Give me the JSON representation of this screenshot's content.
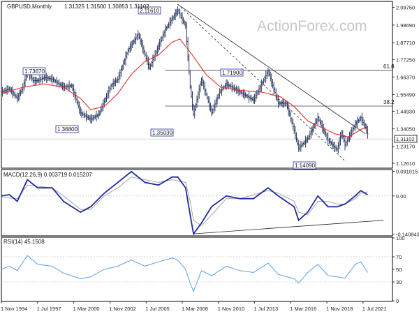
{
  "chart_data": {
    "type": "line",
    "price": {
      "title": "GBPUSD,Monthly",
      "ohlc": "1.31325 1.31500 1.30853 1.31102",
      "y_ticks": [
        {
          "label": "2.09750",
          "value": 2.0975
        },
        {
          "label": "1.98690",
          "value": 1.9869
        },
        {
          "label": "1.87710",
          "value": 1.8771
        },
        {
          "label": "1.77250",
          "value": 1.7725
        },
        {
          "label": "1.66370",
          "value": 1.6637
        },
        {
          "label": "1.55490",
          "value": 1.5549
        },
        {
          "label": "1.44930",
          "value": 1.4493
        },
        {
          "label": "1.34050",
          "value": 1.3405
        },
        {
          "label": "1.23170",
          "value": 1.2317
        },
        {
          "label": "1.12610",
          "value": 1.1261
        }
      ],
      "ylim": [
        1.1,
        2.13
      ],
      "current_price": {
        "label": "1.31102",
        "value": 1.31102
      },
      "callouts": [
        {
          "label": "2.11610",
          "value": 2.1161,
          "date": "Nov 2007"
        },
        {
          "label": "1.73670",
          "value": 1.7367,
          "date": "Jan 1996"
        },
        {
          "label": "1.36800",
          "value": 1.368,
          "date": "Jun 2001"
        },
        {
          "label": "1.71900",
          "value": 1.719,
          "date": "Jul 2014"
        },
        {
          "label": "1.35030",
          "value": 1.3503,
          "date": "Jan 2009"
        },
        {
          "label": "1.14090",
          "value": 1.1409,
          "date": "Mar 2020"
        }
      ],
      "fib_levels": [
        {
          "label": "61.8",
          "value": 1.738
        },
        {
          "label": "38.2",
          "value": 1.508
        }
      ],
      "close_series": [
        [
          "1994-11",
          1.57
        ],
        [
          "1995-06",
          1.59
        ],
        [
          "1996-01",
          1.53
        ],
        [
          "1996-06",
          1.6
        ],
        [
          "1996-10",
          1.7
        ],
        [
          "1997-03",
          1.64
        ],
        [
          "1997-07",
          1.64
        ],
        [
          "1998-01",
          1.66
        ],
        [
          "1998-08",
          1.65
        ],
        [
          "1999-06",
          1.6
        ],
        [
          "2000-01",
          1.61
        ],
        [
          "2000-09",
          1.44
        ],
        [
          "2001-06",
          1.4
        ],
        [
          "2002-01",
          1.43
        ],
        [
          "2002-12",
          1.61
        ],
        [
          "2003-06",
          1.65
        ],
        [
          "2004-03",
          1.83
        ],
        [
          "2004-12",
          1.93
        ],
        [
          "2005-06",
          1.8
        ],
        [
          "2005-10",
          1.72
        ],
        [
          "2006-12",
          1.96
        ],
        [
          "2007-11",
          2.08
        ],
        [
          "2008-06",
          1.98
        ],
        [
          "2008-10",
          1.6
        ],
        [
          "2009-01",
          1.43
        ],
        [
          "2009-08",
          1.65
        ],
        [
          "2010-05",
          1.44
        ],
        [
          "2010-12",
          1.57
        ],
        [
          "2011-06",
          1.62
        ],
        [
          "2012-06",
          1.57
        ],
        [
          "2013-06",
          1.52
        ],
        [
          "2014-07",
          1.7
        ],
        [
          "2015-04",
          1.5
        ],
        [
          "2015-11",
          1.5
        ],
        [
          "2016-06",
          1.33
        ],
        [
          "2016-10",
          1.22
        ],
        [
          "2017-06",
          1.28
        ],
        [
          "2018-03",
          1.41
        ],
        [
          "2018-12",
          1.27
        ],
        [
          "2019-08",
          1.21
        ],
        [
          "2019-12",
          1.32
        ],
        [
          "2020-03",
          1.24
        ],
        [
          "2020-12",
          1.37
        ],
        [
          "2021-05",
          1.41
        ],
        [
          "2021-09",
          1.35
        ],
        [
          "2021-11",
          1.31
        ]
      ],
      "ma_series": [
        [
          "1994-11",
          1.56
        ],
        [
          "1996-06",
          1.6
        ],
        [
          "1998-01",
          1.62
        ],
        [
          "1999-06",
          1.6
        ],
        [
          "2000-09",
          1.53
        ],
        [
          "2001-06",
          1.46
        ],
        [
          "2002-06",
          1.48
        ],
        [
          "2003-06",
          1.56
        ],
        [
          "2004-06",
          1.68
        ],
        [
          "2005-06",
          1.76
        ],
        [
          "2006-06",
          1.8
        ],
        [
          "2007-06",
          1.88
        ],
        [
          "2008-01",
          1.9
        ],
        [
          "2008-12",
          1.8
        ],
        [
          "2009-12",
          1.68
        ],
        [
          "2011-01",
          1.6
        ],
        [
          "2012-06",
          1.58
        ],
        [
          "2014-01",
          1.57
        ],
        [
          "2015-06",
          1.54
        ],
        [
          "2016-06",
          1.48
        ],
        [
          "2017-06",
          1.39
        ],
        [
          "2018-06",
          1.35
        ],
        [
          "2019-06",
          1.31
        ],
        [
          "2020-06",
          1.29
        ],
        [
          "2021-06",
          1.34
        ],
        [
          "2021-11",
          1.35
        ]
      ],
      "trendlines": [
        {
          "style": "solid",
          "from": [
            "2007-11",
            2.1161
          ],
          "to": [
            "2021-09",
            1.31
          ]
        },
        {
          "style": "dashed",
          "from": [
            "2007-11",
            2.1161
          ],
          "to": [
            "2020-03",
            1.1409
          ]
        }
      ]
    },
    "macd": {
      "title": "MACD(12,26,9) 0.003719 0.015207",
      "y_ticks": [
        {
          "label": "0.091015",
          "value": 0.091015
        },
        {
          "label": "0.00",
          "value": 0.0
        },
        {
          "label": "-0.140843",
          "value": -0.140843
        }
      ],
      "ylim": [
        -0.145,
        0.095
      ],
      "macd_series": [
        [
          "1994-11",
          0.0
        ],
        [
          "1995-06",
          0.005
        ],
        [
          "1996-01",
          -0.02
        ],
        [
          "1996-10",
          0.06
        ],
        [
          "1997-07",
          0.03
        ],
        [
          "1998-08",
          0.03
        ],
        [
          "1999-06",
          -0.02
        ],
        [
          "2000-09",
          -0.06
        ],
        [
          "2001-06",
          -0.04
        ],
        [
          "2002-06",
          0.01
        ],
        [
          "2003-06",
          0.05
        ],
        [
          "2004-06",
          0.09
        ],
        [
          "2005-06",
          0.05
        ],
        [
          "2006-06",
          0.04
        ],
        [
          "2007-06",
          0.07
        ],
        [
          "2007-11",
          0.07
        ],
        [
          "2008-06",
          0.03
        ],
        [
          "2008-10",
          -0.07
        ],
        [
          "2009-01",
          -0.14
        ],
        [
          "2009-08",
          -0.1
        ],
        [
          "2010-05",
          -0.04
        ],
        [
          "2011-06",
          0.0
        ],
        [
          "2012-06",
          -0.01
        ],
        [
          "2013-06",
          -0.01
        ],
        [
          "2014-07",
          0.03
        ],
        [
          "2015-04",
          0.0
        ],
        [
          "2016-06",
          -0.04
        ],
        [
          "2016-10",
          -0.09
        ],
        [
          "2017-06",
          -0.06
        ],
        [
          "2018-03",
          0.0
        ],
        [
          "2018-12",
          -0.04
        ],
        [
          "2019-08",
          -0.04
        ],
        [
          "2020-03",
          -0.03
        ],
        [
          "2020-12",
          0.0
        ],
        [
          "2021-05",
          0.02
        ],
        [
          "2021-11",
          0.004
        ]
      ],
      "signal_series": [
        [
          "1994-11",
          -0.005
        ],
        [
          "1996-01",
          -0.01
        ],
        [
          "1996-10",
          0.04
        ],
        [
          "1998-08",
          0.03
        ],
        [
          "1999-06",
          0.0
        ],
        [
          "2000-09",
          -0.05
        ],
        [
          "2001-06",
          -0.05
        ],
        [
          "2002-06",
          0.0
        ],
        [
          "2003-06",
          0.03
        ],
        [
          "2004-06",
          0.07
        ],
        [
          "2005-06",
          0.06
        ],
        [
          "2006-06",
          0.05
        ],
        [
          "2007-06",
          0.06
        ],
        [
          "2008-06",
          0.05
        ],
        [
          "2008-10",
          -0.02
        ],
        [
          "2009-01",
          -0.09
        ],
        [
          "2009-08",
          -0.11
        ],
        [
          "2010-05",
          -0.07
        ],
        [
          "2011-06",
          -0.01
        ],
        [
          "2012-06",
          -0.01
        ],
        [
          "2014-07",
          0.02
        ],
        [
          "2015-04",
          0.01
        ],
        [
          "2016-06",
          -0.02
        ],
        [
          "2016-10",
          -0.06
        ],
        [
          "2017-06",
          -0.07
        ],
        [
          "2018-03",
          -0.02
        ],
        [
          "2018-12",
          -0.02
        ],
        [
          "2019-08",
          -0.03
        ],
        [
          "2020-03",
          -0.03
        ],
        [
          "2020-12",
          -0.01
        ],
        [
          "2021-05",
          0.01
        ],
        [
          "2021-11",
          0.015
        ]
      ],
      "trendline": {
        "from": [
          "2009-01",
          -0.14
        ],
        "to": [
          "2023-01",
          -0.09
        ]
      }
    },
    "rsi": {
      "title": "RSI(14) 45.1508",
      "y_ticks": [
        {
          "label": "100",
          "value": 100
        },
        {
          "label": "70",
          "value": 70
        },
        {
          "label": "50",
          "value": 50
        },
        {
          "label": "30",
          "value": 30
        },
        {
          "label": "0",
          "value": 0
        }
      ],
      "ylim": [
        0,
        100
      ],
      "series": [
        [
          "1994-11",
          50
        ],
        [
          "1995-06",
          55
        ],
        [
          "1996-01",
          48
        ],
        [
          "1996-10",
          72
        ],
        [
          "1997-07",
          58
        ],
        [
          "1998-08",
          55
        ],
        [
          "1999-06",
          44
        ],
        [
          "2000-09",
          35
        ],
        [
          "2001-06",
          38
        ],
        [
          "2002-06",
          50
        ],
        [
          "2003-06",
          55
        ],
        [
          "2004-06",
          65
        ],
        [
          "2005-06",
          55
        ],
        [
          "2006-06",
          62
        ],
        [
          "2007-06",
          68
        ],
        [
          "2007-11",
          65
        ],
        [
          "2008-06",
          50
        ],
        [
          "2008-10",
          28
        ],
        [
          "2009-01",
          15
        ],
        [
          "2009-08",
          48
        ],
        [
          "2010-05",
          40
        ],
        [
          "2011-06",
          55
        ],
        [
          "2012-06",
          48
        ],
        [
          "2013-06",
          45
        ],
        [
          "2014-07",
          60
        ],
        [
          "2015-04",
          42
        ],
        [
          "2016-06",
          35
        ],
        [
          "2016-10",
          28
        ],
        [
          "2017-06",
          45
        ],
        [
          "2018-03",
          58
        ],
        [
          "2018-12",
          40
        ],
        [
          "2019-08",
          38
        ],
        [
          "2020-03",
          36
        ],
        [
          "2020-12",
          58
        ],
        [
          "2021-05",
          62
        ],
        [
          "2021-11",
          45
        ]
      ]
    },
    "x_ticks": [
      {
        "label": "1 Nov 1994",
        "date": "1994-11"
      },
      {
        "label": "1 Jul 1997",
        "date": "1997-07"
      },
      {
        "label": "1 Mar 2000",
        "date": "2000-03"
      },
      {
        "label": "1 Nov 2002",
        "date": "2002-11"
      },
      {
        "label": "1 Jul 2005",
        "date": "2005-07"
      },
      {
        "label": "1 Mar 2008",
        "date": "2008-03"
      },
      {
        "label": "1 Nov 2010",
        "date": "2010-11"
      },
      {
        "label": "1 Jul 2013",
        "date": "2013-07"
      },
      {
        "label": "1 Mar 2016",
        "date": "2016-03"
      },
      {
        "label": "1 Nov 2018",
        "date": "2018-11"
      },
      {
        "label": "1 Jul 2021",
        "date": "2021-07"
      }
    ],
    "xlim": [
      "1994-11",
      "2023-09"
    ],
    "watermark": "ActionForex.com",
    "colors": {
      "bars": "#1c2a57",
      "ma": "#e0302a",
      "trendline": "#222222",
      "macd": "#1f2aa0",
      "signal": "#9a9a9a",
      "rsi": "#5aa0e8",
      "callout_text": "#1f2aa0",
      "watermark": "#c8c8c8"
    }
  }
}
